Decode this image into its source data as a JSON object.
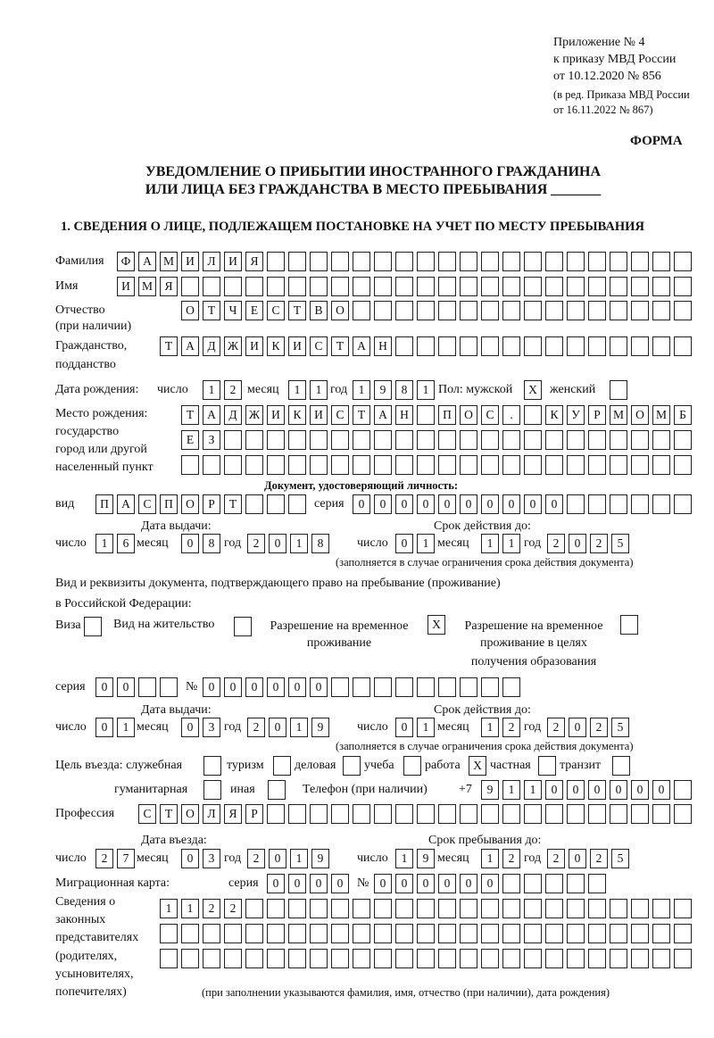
{
  "header": {
    "appendix_line1": "Приложение № 4",
    "appendix_line2": "к приказу МВД России",
    "appendix_line3": "от 10.12.2020 № 856",
    "amend_line1": "(в ред. Приказа МВД России",
    "amend_line2": "от 16.11.2022 № 867)",
    "form_label": "ФОРМА",
    "title_line1": "УВЕДОМЛЕНИЕ О ПРИБЫТИИ ИНОСТРАННОГО ГРАЖДАНИНА",
    "title_line2": "ИЛИ ЛИЦА БЕЗ ГРАЖДАНСТВА В МЕСТО ПРЕБЫВАНИЯ _______",
    "section1": "1. СВЕДЕНИЯ О ЛИЦЕ, ПОДЛЕЖАЩЕМ ПОСТАНОВКЕ НА УЧЕТ ПО МЕСТУ ПРЕБЫВАНИЯ"
  },
  "labels": {
    "surname": "Фамилия",
    "name": "Имя",
    "patronymic1": "Отчество",
    "patronymic2": "(при наличии)",
    "citizenship1": "Гражданство,",
    "citizenship2": "подданство",
    "birth_date": "Дата рождения:",
    "day": "число",
    "month": "месяц",
    "year": "год",
    "sex_male": "Пол: мужской",
    "sex_female": "женский",
    "birthplace1": "Место рождения:",
    "birthplace2": "государство",
    "birthplace3": "город или другой",
    "birthplace4": "населенный пункт",
    "id_doc": "Документ, удостоверяющий личность:",
    "kind": "вид",
    "series": "серия",
    "number": "№",
    "issue_date": "Дата выдачи:",
    "valid_until": "Срок действия до:",
    "valid_note": "(заполняется в случае ограничения срока действия документа)",
    "right_doc1": "Вид и реквизиты документа, подтверждающего право на пребывание (проживание)",
    "right_doc2": "в Российской Федерации:",
    "visa": "Виза",
    "residence": "Вид на жительство",
    "trp1": "Разрешение на временное",
    "trp2": "проживание",
    "trpe1": "Разрешение на временное",
    "trpe2": "проживание в целях",
    "trpe3": "получения образования",
    "purpose": "Цель въезда: служебная",
    "tourism": "туризм",
    "business": "деловая",
    "study": "учеба",
    "work": "работа",
    "private": "частная",
    "transit": "транзит",
    "humanitarian": "гуманитарная",
    "other": "иная",
    "phone": "Телефон (при наличии)",
    "phone_prefix": "+7",
    "profession": "Профессия",
    "entry_date": "Дата въезда:",
    "stay_until": "Срок пребывания до:",
    "migration_card": "Миграционная карта:",
    "reps1": "Сведения о",
    "reps2": "законных",
    "reps3": "представителях",
    "reps4": "(родителях,",
    "reps5": "усыновителях,",
    "reps6": "попечителях)",
    "reps_note": "(при заполнении указываются фамилия, имя, отчество (при наличии), дата рождения)"
  },
  "fields": {
    "surname": "ФАМИЛИЯ",
    "name": "ИМЯ",
    "patronymic": "ОТЧЕСТВО",
    "citizenship": "ТАДЖИКИСТАН",
    "birth_day": "12",
    "birth_month": "11",
    "birth_year": "1981",
    "sex_male": "X",
    "sex_female": "",
    "birthplace_1": "ТАДЖИКИСТАН ПОС. КУРМОМБ",
    "birthplace_2": "ЕЗ",
    "birthplace_3": "",
    "id_kind": "ПАСПОРТ",
    "id_series": "0000",
    "id_number": "000000",
    "id_issue_day": "16",
    "id_issue_month": "08",
    "id_issue_year": "2018",
    "id_valid_day": "01",
    "id_valid_month": "11",
    "id_valid_year": "2025",
    "visa": "",
    "residence": "",
    "trp": "X",
    "trpe": "",
    "rd_series": "00",
    "rd_number": "000000",
    "rd_issue_day": "01",
    "rd_issue_month": "03",
    "rd_issue_year": "2019",
    "rd_valid_day": "01",
    "rd_valid_month": "12",
    "rd_valid_year": "2025",
    "p_official": "",
    "p_tourism": "",
    "p_business": "",
    "p_study": "",
    "p_work": "X",
    "p_private": "",
    "p_transit": "",
    "p_humanitarian": "",
    "p_other": "",
    "phone": "911000000",
    "profession": "СТОЛЯР",
    "entry_day": "27",
    "entry_month": "03",
    "entry_year": "2019",
    "stay_day": "19",
    "stay_month": "12",
    "stay_year": "2025",
    "mc_series": "0000",
    "mc_number": "000000",
    "reps_1": "1122",
    "reps_2": "",
    "reps_3": ""
  }
}
